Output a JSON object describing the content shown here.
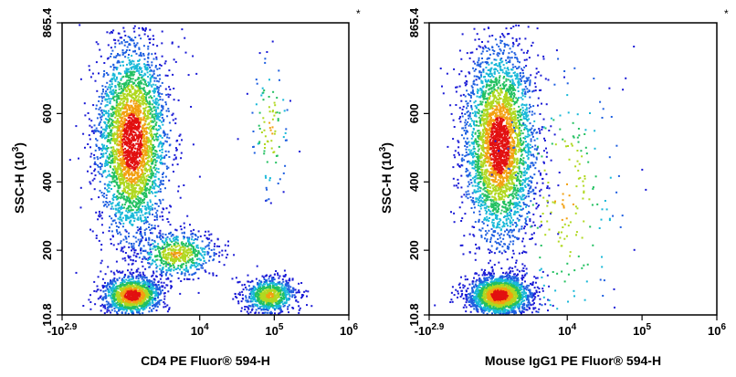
{
  "chart_data": [
    {
      "type": "scatter",
      "style": "density pseudocolor dot plot",
      "xlabel": "CD4 PE Fluor® 594-H",
      "ylabel": "SSC-H",
      "ylabel_sup": "(10",
      "ylabel_exp": "3",
      "ylabel_close": ")",
      "corner_mark": "*",
      "x_scale": "biexponential",
      "xlim": [
        -794,
        1000000
      ],
      "ylim": [
        10.8,
        865.4
      ],
      "x_ticks": [
        {
          "value": -794,
          "base": "-10",
          "exp": "2.9"
        },
        {
          "value": 10000,
          "base": "10",
          "exp": "4"
        },
        {
          "value": 100000,
          "base": "10",
          "exp": "5"
        },
        {
          "value": 1000000,
          "base": "10",
          "exp": "6"
        }
      ],
      "y_ticks": [
        {
          "value": 10.8,
          "label": "10.8"
        },
        {
          "value": 200,
          "label": "200"
        },
        {
          "value": 400,
          "label": "400"
        },
        {
          "value": 600,
          "label": "600"
        },
        {
          "value": 865.4,
          "label": "865.4"
        }
      ],
      "populations": [
        {
          "x": 200,
          "y": 520,
          "count": 3300,
          "spread": 0.6
        },
        {
          "x": 200,
          "y": 70,
          "count": 1300,
          "spread": 0.4
        },
        {
          "x": 2500,
          "y": 190,
          "count": 650,
          "spread": 0.7
        },
        {
          "x": 85000,
          "y": 70,
          "count": 850,
          "spread": 0.3
        },
        {
          "x": 85000,
          "y": 560,
          "count": 100,
          "spread": 0.15
        }
      ],
      "grid": false
    },
    {
      "type": "scatter",
      "style": "density pseudocolor dot plot",
      "xlabel": "Mouse IgG1 PE Fluor® 594-H",
      "ylabel": "SSC-H",
      "ylabel_sup": "(10",
      "ylabel_exp": "3",
      "ylabel_close": ")",
      "corner_mark": "*",
      "x_scale": "biexponential",
      "xlim": [
        -794,
        1000000
      ],
      "ylim": [
        10.8,
        865.4
      ],
      "x_ticks": [
        {
          "value": -794,
          "base": "-10",
          "exp": "2.9"
        },
        {
          "value": 10000,
          "base": "10",
          "exp": "4"
        },
        {
          "value": 100000,
          "base": "10",
          "exp": "5"
        },
        {
          "value": 1000000,
          "base": "10",
          "exp": "6"
        }
      ],
      "y_ticks": [
        {
          "value": 10.8,
          "label": "10.8"
        },
        {
          "value": 200,
          "label": "200"
        },
        {
          "value": 400,
          "label": "400"
        },
        {
          "value": 600,
          "label": "600"
        },
        {
          "value": 865.4,
          "label": "865.4"
        }
      ],
      "populations": [
        {
          "x": 200,
          "y": 510,
          "count": 3400,
          "spread": 0.6
        },
        {
          "x": 200,
          "y": 70,
          "count": 2000,
          "spread": 0.45
        },
        {
          "x": 8000,
          "y": 350,
          "count": 220,
          "spread": 1.4
        }
      ],
      "grid": false
    }
  ]
}
